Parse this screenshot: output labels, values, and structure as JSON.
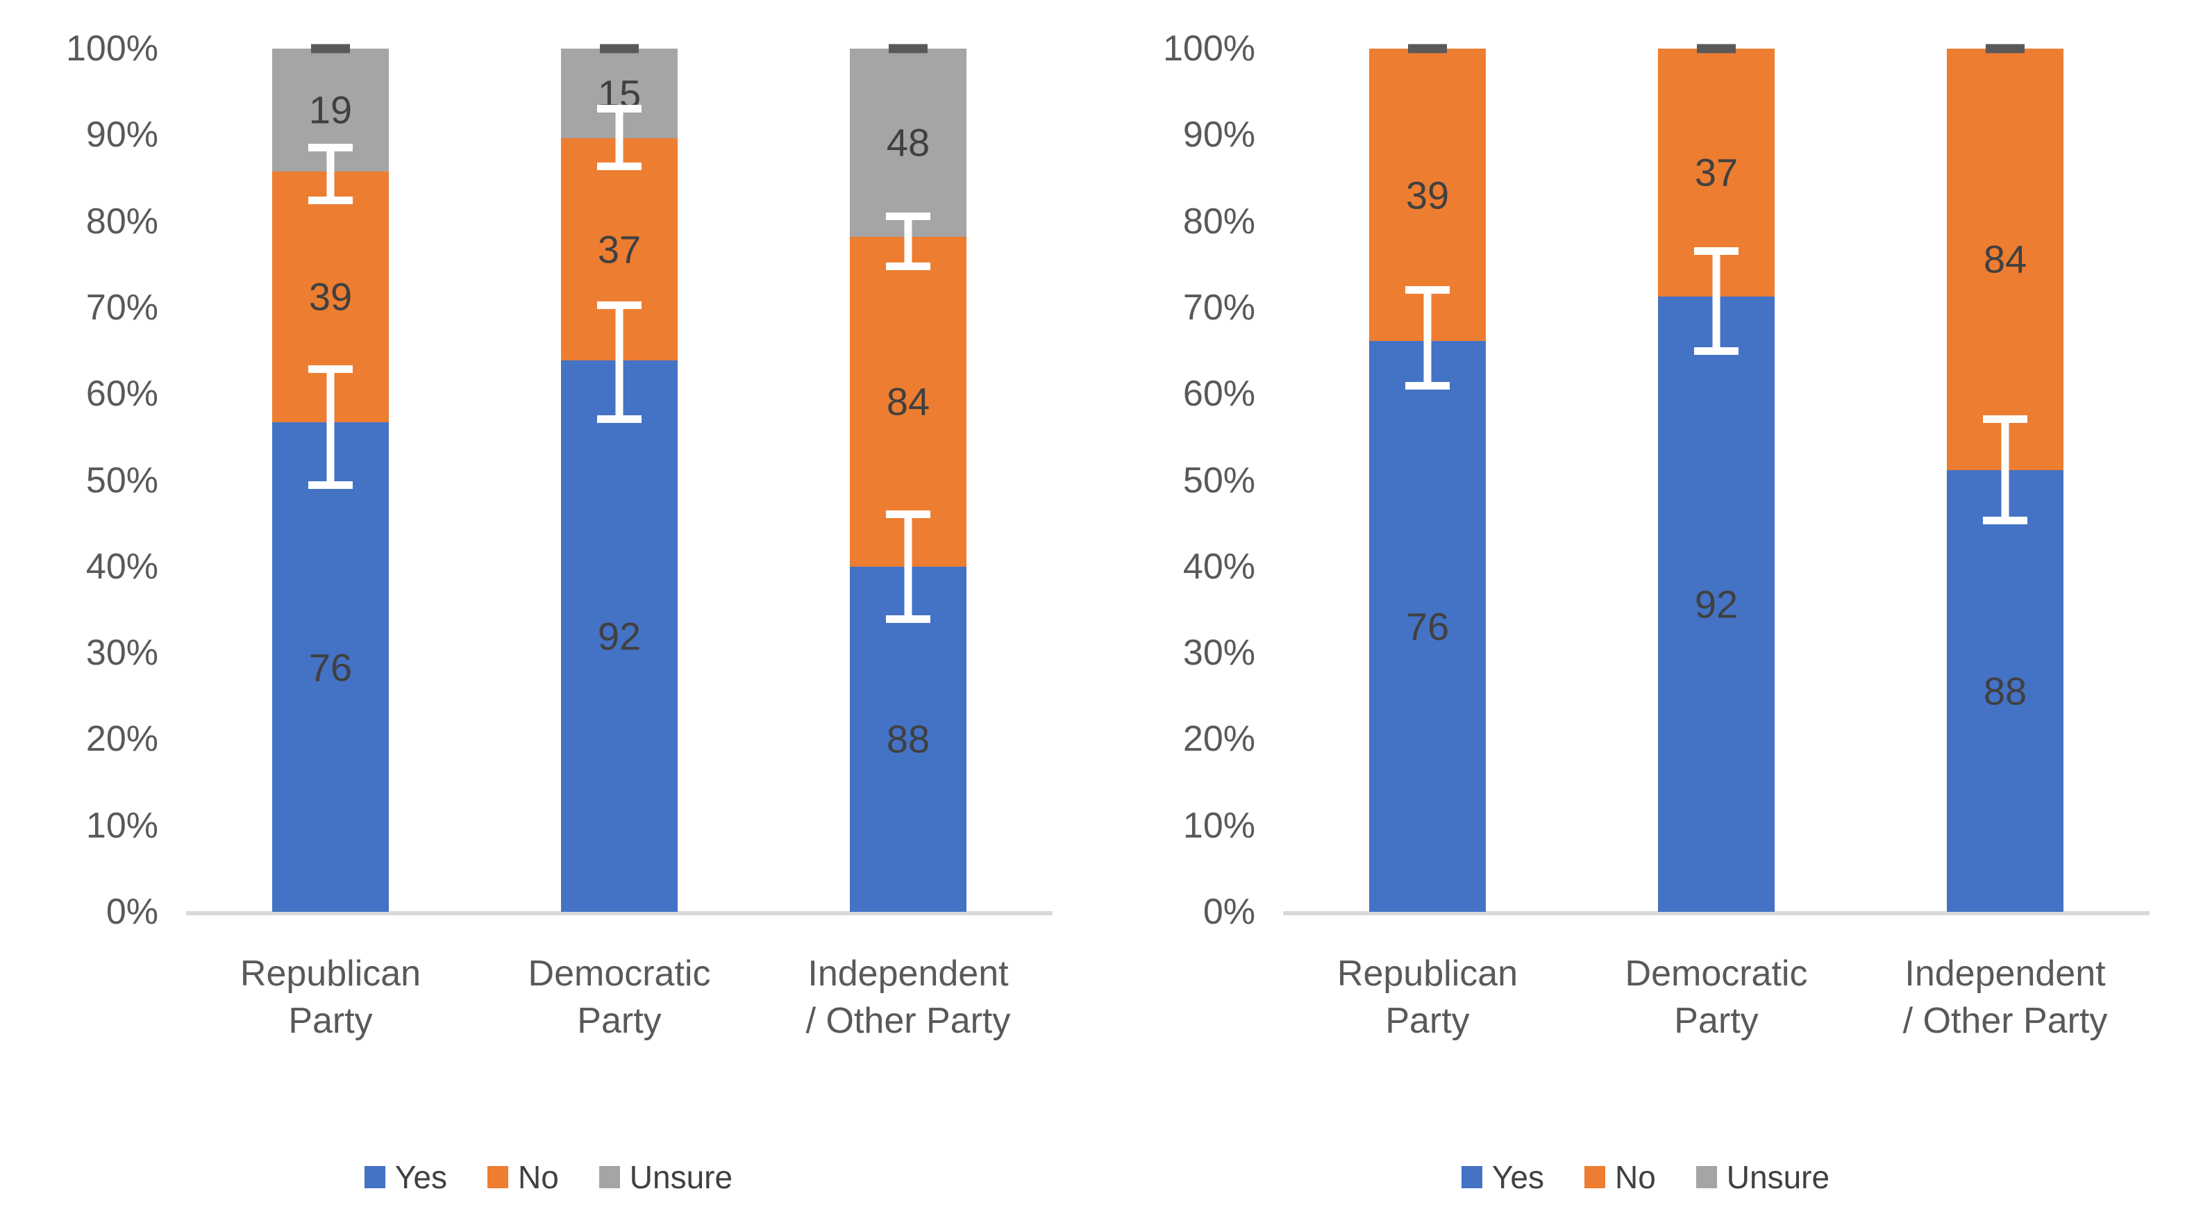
{
  "page": {
    "background": "#ffffff"
  },
  "colors": {
    "yes": "#4472C4",
    "no": "#ED7D31",
    "unsure": "#A5A5A5",
    "error_bar": "#FFFFFF",
    "top_cap": "#595959",
    "axis_line": "#D9D9D9",
    "tick_text": "#595959",
    "label_text": "#404040"
  },
  "y_axis": {
    "min": 0,
    "max": 100,
    "ticks": [
      "0%",
      "10%",
      "20%",
      "30%",
      "40%",
      "50%",
      "60%",
      "70%",
      "80%",
      "90%",
      "100%"
    ]
  },
  "legend": {
    "items": [
      {
        "label": "Yes",
        "color_key": "yes"
      },
      {
        "label": "No",
        "color_key": "no"
      },
      {
        "label": "Unsure",
        "color_key": "unsure"
      }
    ]
  },
  "chart_data": [
    {
      "type": "bar",
      "subtype": "stacked-100pct",
      "position": "left",
      "grid": false,
      "legend_position": "bottom",
      "ylim": [
        0,
        100
      ],
      "categories": [
        "Republican Party",
        "Democratic Party",
        "Independent / Other Party"
      ],
      "category_lines": [
        [
          "Republican",
          "Party"
        ],
        [
          "Democratic",
          "Party"
        ],
        [
          "Independent",
          "/ Other Party"
        ]
      ],
      "series": [
        {
          "name": "Yes",
          "color_key": "yes",
          "counts": [
            76,
            92,
            88
          ],
          "pct": [
            56.7,
            63.9,
            40.0
          ]
        },
        {
          "name": "No",
          "color_key": "no",
          "counts": [
            39,
            37,
            84
          ],
          "pct": [
            29.1,
            25.7,
            38.2
          ]
        },
        {
          "name": "Unsure",
          "color_key": "unsure",
          "counts": [
            19,
            15,
            48
          ],
          "pct": [
            14.2,
            10.4,
            21.8
          ]
        }
      ],
      "error_bars": [
        {
          "category": 0,
          "boundary_after": "Yes",
          "center": 56.7,
          "low": 49.0,
          "high": 63.3
        },
        {
          "category": 0,
          "boundary_after": "No",
          "center": 85.8,
          "low": 82.0,
          "high": 89.0
        },
        {
          "category": 1,
          "boundary_after": "Yes",
          "center": 63.9,
          "low": 56.6,
          "high": 70.7
        },
        {
          "category": 1,
          "boundary_after": "No",
          "center": 89.6,
          "low": 85.9,
          "high": 93.5
        },
        {
          "category": 2,
          "boundary_after": "Yes",
          "center": 40.0,
          "low": 33.5,
          "high": 46.5
        },
        {
          "category": 2,
          "boundary_after": "No",
          "center": 78.2,
          "low": 74.3,
          "high": 81.0
        }
      ],
      "top_error_cap_at": 100
    },
    {
      "type": "bar",
      "subtype": "stacked-100pct",
      "position": "right",
      "grid": false,
      "legend_position": "bottom",
      "ylim": [
        0,
        100
      ],
      "categories": [
        "Republican Party",
        "Democratic Party",
        "Independent / Other Party"
      ],
      "category_lines": [
        [
          "Republican",
          "Party"
        ],
        [
          "Democratic",
          "Party"
        ],
        [
          "Independent",
          "/ Other Party"
        ]
      ],
      "series": [
        {
          "name": "Yes",
          "color_key": "yes",
          "counts": [
            76,
            92,
            88
          ],
          "pct": [
            66.1,
            71.3,
            51.2
          ]
        },
        {
          "name": "No",
          "color_key": "no",
          "counts": [
            39,
            37,
            84
          ],
          "pct": [
            33.9,
            28.7,
            48.8
          ]
        }
      ],
      "error_bars": [
        {
          "category": 0,
          "boundary_after": "Yes",
          "center": 66.1,
          "low": 60.5,
          "high": 72.5
        },
        {
          "category": 1,
          "boundary_after": "Yes",
          "center": 71.3,
          "low": 64.5,
          "high": 77.0
        },
        {
          "category": 2,
          "boundary_after": "Yes",
          "center": 51.2,
          "low": 44.9,
          "high": 57.5
        }
      ],
      "top_error_cap_at": 100
    }
  ]
}
